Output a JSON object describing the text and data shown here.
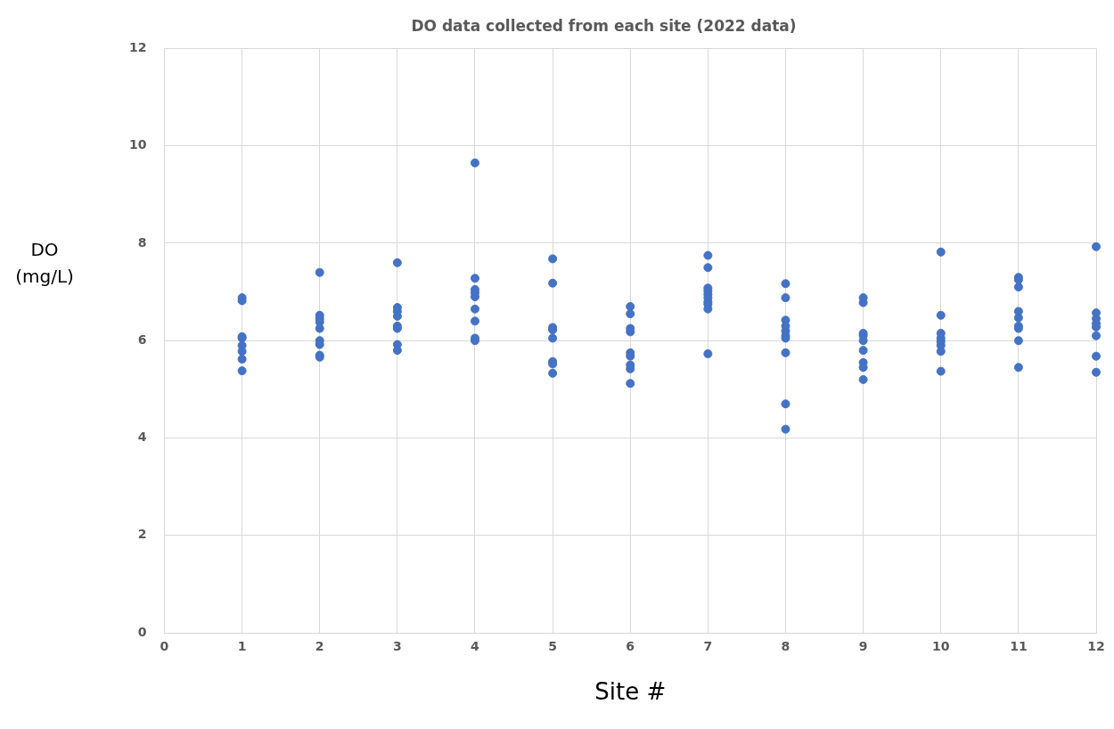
{
  "chart_data": {
    "type": "scatter",
    "title": "DO data collected from each site (2022 data)",
    "xlabel": "Site #",
    "ylabel": "DO (mg/L)",
    "series": [
      {
        "color": "#4472c4",
        "x": [
          1,
          1,
          1,
          1,
          1,
          1,
          1,
          1,
          2,
          2,
          2,
          2,
          2,
          2,
          2,
          2,
          2,
          3,
          3,
          3,
          3,
          3,
          3,
          3,
          3,
          4,
          4,
          4,
          4,
          4,
          4,
          4,
          4,
          4,
          5,
          5,
          5,
          5,
          5,
          5,
          5,
          5,
          6,
          6,
          6,
          6,
          6,
          6,
          6,
          6,
          6,
          7,
          7,
          7,
          7,
          7,
          7,
          7,
          7,
          7,
          7,
          8,
          8,
          8,
          8,
          8,
          8,
          8,
          8,
          8,
          8,
          9,
          9,
          9,
          9,
          9,
          9,
          9,
          9,
          9,
          10,
          10,
          10,
          10,
          10,
          10,
          10,
          10,
          11,
          11,
          11,
          11,
          11,
          11,
          11,
          11,
          11,
          12,
          12,
          12,
          12,
          12,
          12,
          12,
          12
        ],
        "values": [
          6.88,
          6.82,
          6.08,
          6.05,
          5.9,
          5.78,
          5.62,
          5.38,
          7.4,
          6.52,
          6.45,
          6.38,
          6.25,
          6.0,
          5.92,
          5.7,
          5.66,
          7.6,
          6.68,
          6.6,
          6.5,
          6.3,
          6.25,
          5.92,
          5.8,
          9.65,
          7.28,
          7.05,
          6.98,
          6.9,
          6.65,
          6.4,
          6.05,
          6.0,
          7.68,
          7.18,
          6.27,
          6.22,
          6.05,
          5.57,
          5.52,
          5.33,
          6.7,
          6.55,
          6.25,
          6.18,
          5.75,
          5.68,
          5.5,
          5.42,
          5.12,
          7.75,
          7.5,
          7.08,
          7.02,
          6.95,
          6.88,
          6.8,
          6.75,
          6.65,
          5.73,
          7.17,
          6.88,
          6.42,
          6.3,
          6.2,
          6.1,
          6.05,
          5.75,
          4.7,
          4.18,
          6.88,
          6.78,
          6.15,
          6.1,
          6.0,
          5.8,
          5.55,
          5.45,
          5.2,
          7.82,
          6.52,
          6.15,
          6.05,
          5.98,
          5.9,
          5.78,
          5.37,
          7.3,
          7.25,
          7.1,
          6.6,
          6.47,
          6.3,
          6.25,
          6.0,
          5.45,
          7.93,
          6.57,
          6.45,
          6.35,
          6.28,
          6.1,
          5.68,
          5.35
        ]
      }
    ],
    "xlim": [
      0,
      12
    ],
    "xticks": [
      0,
      1,
      2,
      3,
      4,
      5,
      6,
      7,
      8,
      9,
      10,
      11,
      12
    ],
    "ylim": [
      0,
      12
    ],
    "yticks": [
      0,
      2,
      4,
      6,
      8,
      10,
      12
    ],
    "grid": true,
    "legend": false,
    "marker": "circle"
  }
}
